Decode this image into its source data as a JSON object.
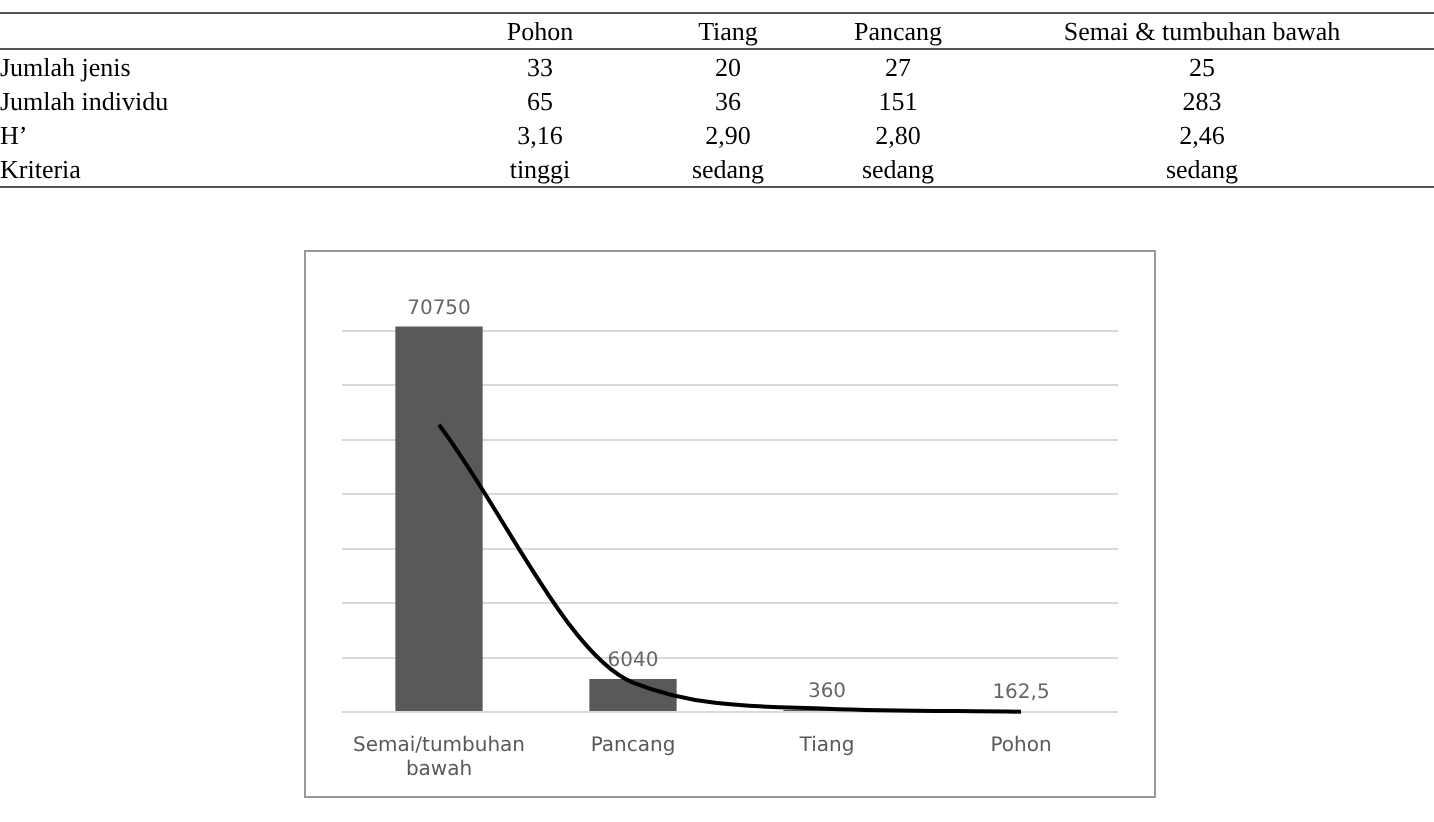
{
  "chart_data": [
    {
      "type": "other",
      "categories": [
        "Pohon",
        "Tiang",
        "Pancang",
        "Semai & tumbuhan bawah"
      ],
      "y_categories": [
        "Jumlah jenis",
        "Jumlah individu",
        "H’",
        "Kriteria"
      ],
      "cell_labels": [
        [
          "33",
          "20",
          "27",
          "25"
        ],
        [
          "65",
          "36",
          "151",
          "283"
        ],
        [
          "3,16",
          "2,90",
          "2,80",
          "2,46"
        ],
        [
          "tinggi",
          "sedang",
          "sedang",
          "sedang"
        ]
      ]
    },
    {
      "type": "bar",
      "categories": [
        "Semai/tumbuhan bawah",
        "Pancang",
        "Tiang",
        "Pohon"
      ],
      "yticks": [
        {
          "value": 0,
          "label": null
        },
        {
          "value": 10000,
          "label": null
        },
        {
          "value": 20000,
          "label": null
        },
        {
          "value": 30000,
          "label": null
        },
        {
          "value": 40000,
          "label": null
        },
        {
          "value": 50000,
          "label": null
        },
        {
          "value": 60000,
          "label": null
        },
        {
          "value": 70000,
          "label": null
        }
      ],
      "tick_labels": "x",
      "grid": "y",
      "legend": false,
      "series": [
        {
          "type": "bar",
          "color": "#595959",
          "values": [
            70750,
            6040,
            360,
            162.5
          ],
          "value_labels": [
            "70750",
            "6040",
            "360",
            "162,5"
          ]
        },
        {
          "type": "line",
          "color": "#000000",
          "values": [
            52700,
            5400,
            600,
            60
          ],
          "marker": "none"
        }
      ]
    }
  ]
}
